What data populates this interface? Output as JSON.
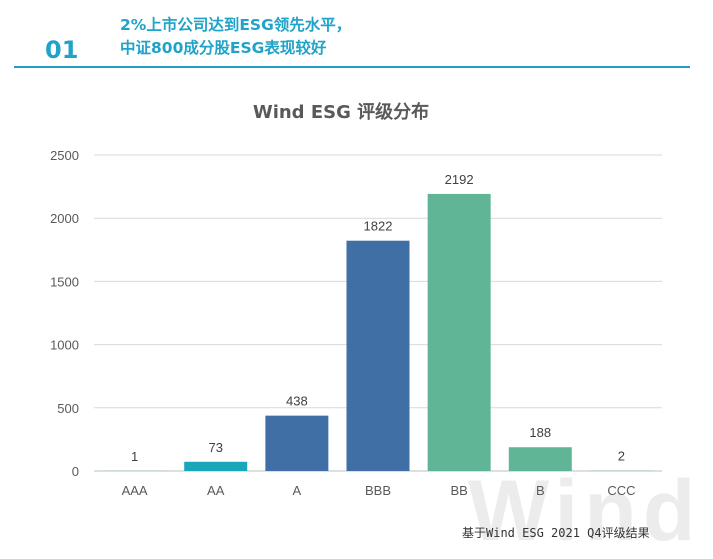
{
  "header": {
    "section_number": "01",
    "title_line1": "2%上市公司达到ESG领先水平，",
    "title_line2": "中证800成分股ESG表现较好"
  },
  "watermark": "Wind",
  "source_note": "基于Wind ESG 2021 Q4评级结果",
  "colors": {
    "accent": "#1fa3c8",
    "rule": "#2a9bbd",
    "gridline": "#d9d9d9",
    "axis_text": "#595959"
  },
  "chart_data": {
    "type": "bar",
    "title": "Wind ESG 评级分布",
    "categories": [
      "AAA",
      "AA",
      "A",
      "BBB",
      "BB",
      "B",
      "CCC"
    ],
    "values": [
      1,
      73,
      438,
      1822,
      2192,
      188,
      2
    ],
    "bar_colors": [
      "#17a7b9",
      "#17a7b9",
      "#406fa6",
      "#406fa6",
      "#5fb595",
      "#5fb595",
      "#5fb595"
    ],
    "ylim": [
      0,
      2500
    ],
    "yticks": [
      0,
      500,
      1000,
      1500,
      2000,
      2500
    ],
    "xlabel": "",
    "ylabel": "",
    "grid": true,
    "legend": "none"
  }
}
